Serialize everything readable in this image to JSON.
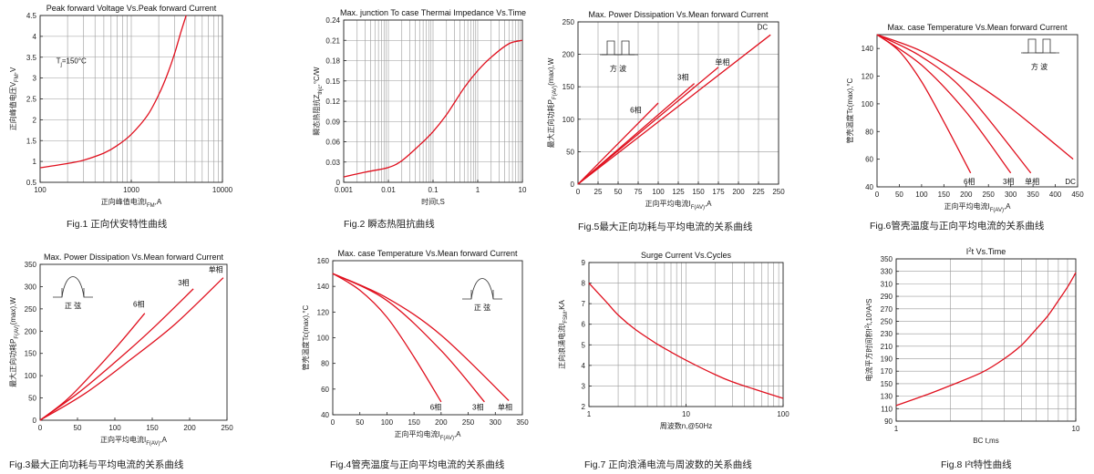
{
  "chart_data": [
    {
      "type": "line",
      "title": "Peak forward Voltage Vs.Peak forward Current",
      "xlabel": "正向峰值电流I",
      "xlabel_sub": "FM",
      "xlabel_tail": ",A",
      "ylabel": "正向峰值电压V",
      "ylabel_sub": "FM",
      "ylabel_tail": ",V",
      "xscale": "log",
      "xlim": [
        100,
        10000
      ],
      "xticks": [
        100,
        1000,
        10000
      ],
      "xtick_labels": [
        "100",
        "1000",
        "10000"
      ],
      "ylim": [
        0.5,
        4.5
      ],
      "yticks": [
        0.5,
        1,
        1.5,
        2,
        2.5,
        3,
        3.5,
        4,
        4.5
      ],
      "ytick_labels": [
        "0.5",
        "1",
        "1.5",
        "2",
        "2.5",
        "3",
        "3.5",
        "4",
        "4.5"
      ],
      "grid": true,
      "annotations": [
        {
          "text": "T",
          "sub": "j",
          "tail": "=150°C",
          "x": 150,
          "y": 3.35
        }
      ],
      "series": [
        {
          "x": [
            100,
            200,
            300,
            500,
            700,
            1000,
            1500,
            2000,
            2500,
            3000,
            3500,
            4000
          ],
          "y": [
            0.85,
            0.95,
            1.03,
            1.2,
            1.38,
            1.65,
            2.1,
            2.6,
            3.1,
            3.6,
            4.1,
            4.5
          ]
        }
      ],
      "caption": "Fig.1 正向伏安特性曲线"
    },
    {
      "type": "line",
      "title": "Max. junction To case Thermai Impedance Vs.Time",
      "xlabel": "时间t,S",
      "ylabel": "瞬态热阻抗Z",
      "ylabel_sub": "thjc",
      "ylabel_tail": ",°C/W",
      "xscale": "log",
      "xlim": [
        0.001,
        10
      ],
      "xticks": [
        0.001,
        0.01,
        0.1,
        1,
        10
      ],
      "xtick_labels": [
        "0.001",
        "0.01",
        "0.1",
        "1",
        "10"
      ],
      "ylim": [
        0,
        0.24
      ],
      "yticks": [
        0,
        0.03,
        0.06,
        0.09,
        0.12,
        0.15,
        0.18,
        0.21,
        0.24
      ],
      "ytick_labels": [
        "0",
        "0.03",
        "0.06",
        "0.09",
        "0.12",
        "0.15",
        "0.18",
        "0.21",
        "0.24"
      ],
      "grid": true,
      "series": [
        {
          "x": [
            0.001,
            0.003,
            0.01,
            0.02,
            0.05,
            0.1,
            0.2,
            0.5,
            1,
            2,
            5,
            10
          ],
          "y": [
            0.008,
            0.015,
            0.022,
            0.032,
            0.055,
            0.075,
            0.1,
            0.14,
            0.165,
            0.185,
            0.205,
            0.21
          ]
        }
      ],
      "caption": "Fig.2  瞬态热阻抗曲线"
    },
    {
      "type": "line",
      "title": "Max. Power Dissipation Vs.Mean forward Current",
      "xlabel": "正向平均电流I",
      "xlabel_sub": "F(AV)",
      "xlabel_tail": ",A",
      "ylabel": "最大正向功耗P",
      "ylabel_sub": "F(AV)",
      "ylabel_tail": "(max),W",
      "xlim": [
        0,
        250
      ],
      "xticks": [
        0,
        25,
        50,
        75,
        100,
        125,
        150,
        175,
        200,
        225,
        250
      ],
      "xtick_labels": [
        "0",
        "25",
        "50",
        "75",
        "100",
        "125",
        "150",
        "175",
        "200",
        "225",
        "250"
      ],
      "ylim": [
        0,
        250
      ],
      "yticks": [
        0,
        50,
        100,
        150,
        200,
        250
      ],
      "ytick_labels": [
        "0",
        "50",
        "100",
        "150",
        "200",
        "250"
      ],
      "grid": true,
      "inset": {
        "kind": "square",
        "label": "方  波"
      },
      "series": [
        {
          "name": "DC",
          "x": [
            0,
            240
          ],
          "y": [
            0,
            230
          ],
          "label_at": [
            230,
            238
          ]
        },
        {
          "name": "单相",
          "x": [
            0,
            175
          ],
          "y": [
            0,
            180
          ],
          "label_at": [
            180,
            184
          ]
        },
        {
          "name": "3相",
          "x": [
            0,
            145
          ],
          "y": [
            0,
            155
          ],
          "label_at": [
            131,
            161
          ]
        },
        {
          "name": "6相",
          "x": [
            0,
            100
          ],
          "y": [
            0,
            125
          ],
          "label_at": [
            72,
            110
          ]
        }
      ],
      "caption": "Fig.5最大正向功耗与平均电流的关系曲线"
    },
    {
      "type": "line",
      "title": "Max. case Temperature Vs.Mean forward Current",
      "xlabel": "正向平均电流I",
      "xlabel_sub": "F(AV)",
      "xlabel_tail": ",A",
      "ylabel": "管壳温度Tc(max),°C",
      "xlim": [
        0,
        450
      ],
      "xticks": [
        0,
        50,
        100,
        150,
        200,
        250,
        300,
        350,
        400,
        450
      ],
      "xtick_labels": [
        "0",
        "50",
        "100",
        "150",
        "200",
        "250",
        "300",
        "350",
        "400",
        "450"
      ],
      "ylim": [
        40,
        150
      ],
      "yticks": [
        40,
        60,
        80,
        100,
        120,
        140
      ],
      "ytick_labels": [
        "40",
        "60",
        "80",
        "100",
        "120",
        "140"
      ],
      "grid": false,
      "inset": {
        "kind": "square",
        "label": "方  波"
      },
      "series": [
        {
          "name": "6相",
          "x": [
            0,
            50,
            100,
            150,
            210
          ],
          "y": [
            150,
            138,
            116,
            87,
            50
          ],
          "label_at": [
            207,
            42
          ]
        },
        {
          "name": "3相",
          "x": [
            0,
            100,
            200,
            300
          ],
          "y": [
            150,
            128,
            94,
            50
          ],
          "label_at": [
            295,
            42
          ]
        },
        {
          "name": "单相",
          "x": [
            0,
            100,
            200,
            345
          ],
          "y": [
            150,
            134,
            108,
            50
          ],
          "label_at": [
            348,
            42
          ]
        },
        {
          "name": "DC",
          "x": [
            0,
            100,
            200,
            300,
            440
          ],
          "y": [
            150,
            138,
            119,
            97,
            60
          ],
          "label_at": [
            434,
            42
          ]
        }
      ],
      "caption": "Fig.6管壳温度与正向平均电流的关系曲线"
    },
    {
      "type": "line",
      "title": "Max. Power Dissipation Vs.Mean forward Current",
      "xlabel": "正向平均电流I",
      "xlabel_sub": "F(AV)",
      "xlabel_tail": ",A",
      "ylabel": "最大正向功耗P",
      "ylabel_sub": "F(AV)",
      "ylabel_tail": "(max),W",
      "xlim": [
        0,
        250
      ],
      "xticks": [
        0,
        50,
        100,
        150,
        200,
        250
      ],
      "xtick_labels": [
        "0",
        "50",
        "100",
        "150",
        "200",
        "250"
      ],
      "ylim": [
        0,
        350
      ],
      "yticks": [
        0,
        50,
        100,
        150,
        200,
        250,
        300,
        350
      ],
      "ytick_labels": [
        "0",
        "50",
        "100",
        "150",
        "200",
        "250",
        "300",
        "350"
      ],
      "grid": false,
      "inset": {
        "kind": "half-sine",
        "label": "正  弦"
      },
      "series": [
        {
          "name": "6相",
          "x": [
            0,
            35,
            70,
            105,
            140
          ],
          "y": [
            0,
            45,
            105,
            170,
            240
          ],
          "label_at": [
            132,
            255
          ]
        },
        {
          "name": "3相",
          "x": [
            0,
            50,
            100,
            150,
            205
          ],
          "y": [
            0,
            60,
            130,
            205,
            295
          ],
          "label_at": [
            192,
            303
          ]
        },
        {
          "name": "单相",
          "x": [
            0,
            60,
            120,
            180,
            245
          ],
          "y": [
            0,
            60,
            135,
            215,
            320
          ],
          "label_at": [
            235,
            333
          ]
        }
      ],
      "caption": "Fig.3最大正向功耗与平均电流的关系曲线"
    },
    {
      "type": "line",
      "title": "Max. case Temperature Vs.Mean forward Current",
      "xlabel": "正向平均电流I",
      "xlabel_sub": "F(AV)",
      "xlabel_tail": ",A",
      "ylabel": "管壳温度Tc(max),°C",
      "xlim": [
        0,
        350
      ],
      "xticks": [
        0,
        50,
        100,
        150,
        200,
        250,
        300,
        350
      ],
      "xtick_labels": [
        "0",
        "50",
        "100",
        "150",
        "200",
        "250",
        "300",
        "350"
      ],
      "ylim": [
        40,
        160
      ],
      "yticks": [
        40,
        60,
        80,
        100,
        120,
        140,
        160
      ],
      "ytick_labels": [
        "40",
        "60",
        "80",
        "100",
        "120",
        "140",
        "160"
      ],
      "grid": false,
      "inset": {
        "kind": "half-sine",
        "label": "正  弦"
      },
      "series": [
        {
          "name": "6相",
          "x": [
            0,
            50,
            100,
            150,
            200
          ],
          "y": [
            150,
            137,
            116,
            85,
            50
          ],
          "label_at": [
            190,
            44
          ]
        },
        {
          "name": "3相",
          "x": [
            0,
            100,
            200,
            280
          ],
          "y": [
            150,
            129,
            90,
            50
          ],
          "label_at": [
            268,
            44
          ]
        },
        {
          "name": "单相",
          "x": [
            0,
            100,
            200,
            325
          ],
          "y": [
            150,
            131,
            102,
            51
          ],
          "label_at": [
            318,
            44
          ]
        }
      ],
      "caption": "Fig.4管壳温度与正向平均电流的关系曲线"
    },
    {
      "type": "line",
      "title": "Surge Current Vs.Cycles",
      "xlabel": "周波数n,@50Hz",
      "ylabel": "正向浪涌电流I",
      "ylabel_sub": "FSM",
      "ylabel_tail": ",KA",
      "xscale": "log",
      "xlim": [
        1,
        100
      ],
      "xticks": [
        1,
        10,
        100
      ],
      "xtick_labels": [
        "1",
        "10",
        "100"
      ],
      "ylim": [
        2,
        9
      ],
      "yticks": [
        2,
        3,
        4,
        5,
        6,
        7,
        8,
        9
      ],
      "ytick_labels": [
        "2",
        "3",
        "4",
        "5",
        "6",
        "7",
        "8",
        "9"
      ],
      "grid": true,
      "series": [
        {
          "x": [
            1,
            1.5,
            2,
            3,
            5,
            7,
            10,
            20,
            30,
            50,
            100
          ],
          "y": [
            8,
            7.1,
            6.45,
            5.75,
            5.05,
            4.65,
            4.25,
            3.55,
            3.2,
            2.85,
            2.4
          ]
        }
      ],
      "caption": "Fig.7 正向浪涌电流与周波数的关系曲线"
    },
    {
      "type": "line",
      "title": "I",
      "title_sup": "2",
      "title_tail": "t  Vs.Time",
      "xlabel": "BC   t,ms",
      "ylabel": "电流平方时间积I",
      "ylabel_sup": "2",
      "ylabel_tail": "t,10³A²S",
      "xscale": "log",
      "xlim": [
        1,
        10
      ],
      "xticks": [
        1,
        10
      ],
      "xtick_labels": [
        "1",
        "10"
      ],
      "ylim": [
        90,
        350
      ],
      "yticks": [
        90,
        110,
        130,
        150,
        170,
        190,
        210,
        230,
        250,
        270,
        290,
        310,
        330,
        350
      ],
      "ytick_labels": [
        "90",
        "110",
        "130",
        "150",
        "170",
        "190",
        "210",
        "230",
        "250",
        "270",
        "290",
        "310",
        "330",
        "350"
      ],
      "grid": true,
      "series": [
        {
          "x": [
            1,
            1.5,
            2,
            3,
            4,
            5,
            6,
            7,
            8,
            9,
            10
          ],
          "y": [
            115,
            133,
            147,
            168,
            190,
            212,
            237,
            259,
            283,
            305,
            328
          ]
        }
      ],
      "caption": "Fig.8 I²t特性曲线"
    }
  ]
}
